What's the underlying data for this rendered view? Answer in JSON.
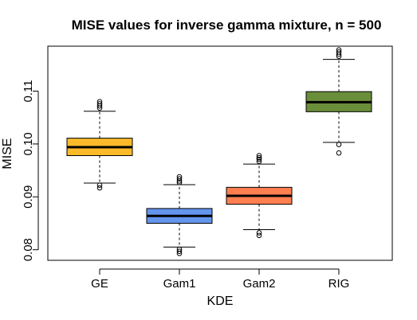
{
  "chart_data": {
    "type": "boxplot",
    "title": "MISE values for inverse gamma mixture, n = 500",
    "xlabel": "KDE",
    "ylabel": "MISE",
    "ylim": [
      0.078,
      0.1185
    ],
    "yticks": [
      0.08,
      0.09,
      0.1,
      0.11
    ],
    "ytick_labels": [
      "0.08",
      "0.09",
      "0.10",
      "0.11"
    ],
    "grid": false,
    "series": [
      {
        "name": "GE",
        "color": "#FBBA2A",
        "whisker_low": 0.0926,
        "q1": 0.0978,
        "median": 0.0994,
        "q3": 0.1011,
        "whisker_high": 0.1062,
        "outliers": [
          0.0922,
          0.0917,
          0.1068,
          0.1072,
          0.1076,
          0.108
        ]
      },
      {
        "name": "Gam1",
        "color": "#6495ED",
        "whisker_low": 0.0805,
        "q1": 0.085,
        "median": 0.0864,
        "q3": 0.0878,
        "whisker_high": 0.0923,
        "outliers": [
          0.0801,
          0.0797,
          0.0793,
          0.0927,
          0.093,
          0.0934,
          0.0938
        ]
      },
      {
        "name": "Gam2",
        "color": "#FF7F50",
        "whisker_low": 0.0838,
        "q1": 0.0886,
        "median": 0.0902,
        "q3": 0.0918,
        "whisker_high": 0.0962,
        "outliers": [
          0.0832,
          0.0827,
          0.0967,
          0.0971,
          0.0974,
          0.0978
        ]
      },
      {
        "name": "RIG",
        "color": "#6B8E3A",
        "whisker_low": 0.1003,
        "q1": 0.1061,
        "median": 0.1079,
        "q3": 0.1099,
        "whisker_high": 0.116,
        "outliers": [
          0.0999,
          0.0983,
          0.1166,
          0.117,
          0.1174,
          0.1178
        ]
      }
    ]
  }
}
